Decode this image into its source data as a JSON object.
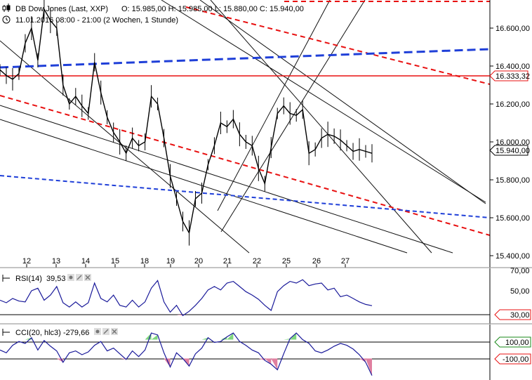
{
  "header": {
    "instrument": "DB Dow Jones (Last, XXP)",
    "ohlc": "O: 15.985,00  H: 15.985,00  L: 15.880,00  C: 15.940,00",
    "period": "11.01.2016 08:00 - 21:00 (2 Wochen, 1 Stunde)"
  },
  "icons": {
    "header_icon": "candlestick-icon",
    "clock": "clock-icon",
    "pane_icons": [
      "hide-icon",
      "edit-icon",
      "close-icon"
    ]
  },
  "colors": {
    "price": "#000000",
    "indicator": "#1a1a9a",
    "red_line": "#e81010",
    "blue_dashed": "#1f3fd8",
    "positive_fill": "#7fd67f",
    "negative_fill": "#e07fa0",
    "axis_text": "#000000"
  },
  "chart_data": [
    {
      "type": "line",
      "subtype": "candlestick-hourly",
      "title": "DB Dow Jones (Last, XXP)",
      "x_ticks": [
        "12",
        "13",
        "14",
        "15",
        "18",
        "19",
        "20",
        "21",
        "22",
        "25",
        "26",
        "27"
      ],
      "y_ticks": [
        "16.600,00",
        "16.400,00",
        "16.200,00",
        "16.000,00",
        "15.800,00",
        "15.600,00",
        "15.400,00"
      ],
      "ylim": [
        15360,
        16760
      ],
      "grid": false,
      "series": [
        {
          "x": [
            0,
            0.2,
            0.4,
            0.6,
            0.8,
            1.0,
            1.2,
            1.4,
            1.6,
            1.8,
            2.0,
            2.2,
            2.4,
            2.6,
            2.8,
            3.0,
            3.2,
            3.4,
            3.6,
            3.8,
            4.0,
            4.2,
            4.4,
            4.6,
            4.8,
            5.0,
            5.2,
            5.4,
            5.6,
            5.8,
            6.0,
            6.2,
            6.4,
            6.6,
            6.8,
            7.0,
            7.2,
            7.4,
            7.6,
            7.8,
            8.0,
            8.2,
            8.4,
            8.6,
            8.8,
            9.0,
            9.2,
            9.4,
            9.6,
            9.8,
            10.0,
            10.2,
            10.4,
            10.6,
            10.8,
            11.0,
            11.2,
            11.4,
            11.6,
            11.8
          ],
          "y": [
            16380,
            16350,
            16330,
            16360,
            16520,
            16600,
            16430,
            16700,
            16640,
            16600,
            16300,
            16200,
            16240,
            16190,
            16150,
            16420,
            16260,
            16130,
            16050,
            16000,
            15940,
            16020,
            15980,
            16000,
            16240,
            16200,
            16020,
            15820,
            15700,
            15580,
            15520,
            15700,
            15730,
            15880,
            15980,
            16100,
            16080,
            16120,
            16040,
            16000,
            15980,
            15860,
            15780,
            15970,
            16150,
            16190,
            16150,
            16140,
            16170,
            15940,
            15960,
            16020,
            16040,
            16030,
            16010,
            15980,
            15950,
            15960,
            15950,
            15940
          ]
        }
      ],
      "horizontal_line": {
        "value": 16333.32,
        "label": "16.333,32"
      },
      "last_price": {
        "value": 15940,
        "label": "15.940,00"
      }
    },
    {
      "type": "line",
      "title": "RSI(14)",
      "legend_value": "39,53",
      "y_ticks": [
        "70,00",
        "50,00",
        "30,00"
      ],
      "ylim": [
        20,
        80
      ],
      "series": [
        {
          "values": [
            46,
            43,
            48,
            45,
            44,
            57,
            60,
            46,
            52,
            62,
            43,
            38,
            44,
            38,
            43,
            66,
            48,
            44,
            52,
            40,
            38,
            46,
            38,
            44,
            60,
            69,
            44,
            32,
            40,
            28,
            33,
            40,
            48,
            58,
            62,
            58,
            66,
            68,
            62,
            56,
            52,
            47,
            40,
            34,
            56,
            63,
            68,
            66,
            70,
            63,
            65,
            66,
            58,
            60,
            50,
            52,
            48,
            44,
            41,
            39.53
          ]
        }
      ],
      "reference_line": {
        "value": 30,
        "label": "30,00"
      }
    },
    {
      "type": "line",
      "title": "CCI(20, hlc3)",
      "legend_value": "-279,66",
      "y_ticks": [
        "100,00",
        "-100,00"
      ],
      "ylim": [
        -320,
        230
      ],
      "series": [
        {
          "values": [
            -10,
            -40,
            40,
            80,
            60,
            120,
            -10,
            90,
            30,
            -20,
            -140,
            -40,
            -20,
            -60,
            -30,
            40,
            80,
            -20,
            10,
            -50,
            -110,
            -20,
            -80,
            -10,
            170,
            150,
            -40,
            -190,
            -40,
            -100,
            -180,
            -50,
            10,
            120,
            70,
            80,
            130,
            170,
            80,
            40,
            -10,
            -40,
            -120,
            -160,
            -220,
            -50,
            110,
            170,
            100,
            60,
            -20,
            -40,
            -10,
            30,
            60,
            40,
            0,
            -60,
            -140,
            -279.66
          ]
        }
      ],
      "reference_lines": [
        {
          "value": 100,
          "label": "100,00"
        },
        {
          "value": -100,
          "label": "-100,00"
        }
      ]
    }
  ]
}
